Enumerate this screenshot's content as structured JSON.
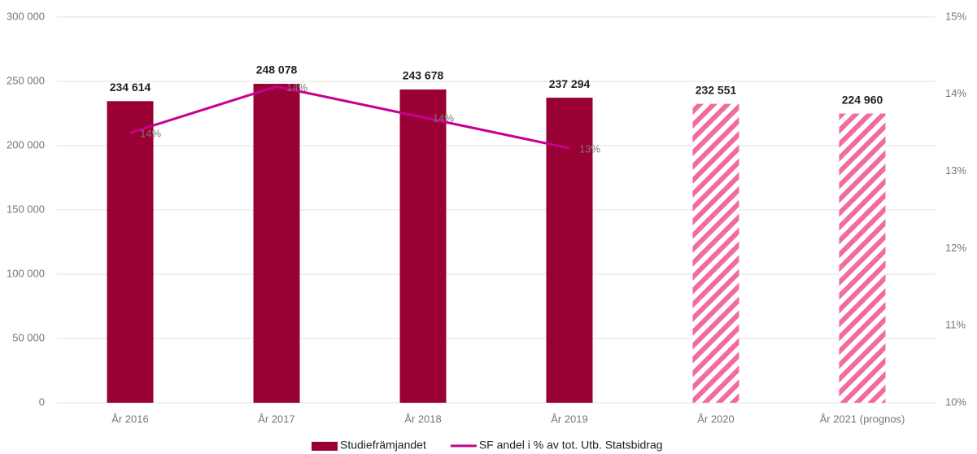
{
  "chart_data": {
    "type": "bar",
    "categories": [
      "År 2016",
      "År 2017",
      "År 2018",
      "År 2019",
      "År 2020",
      "År 2021 (prognos)"
    ],
    "series": [
      {
        "name": "Studiefrämjandet",
        "type": "bar",
        "color": "#990033",
        "hatch_color": "#f06ba0",
        "values": [
          234614,
          248078,
          243678,
          237294,
          232551,
          224960
        ],
        "value_labels": [
          "234 614",
          "248 078",
          "243 678",
          "237 294",
          "232 551",
          "224 960"
        ],
        "styles": [
          "solid",
          "solid",
          "solid",
          "solid",
          "hatched",
          "hatched"
        ]
      },
      {
        "name": "SF andel i % av tot. Utb. Statsbidrag",
        "type": "line",
        "axis": "y2",
        "color": "#c8008f",
        "values": [
          13.5,
          14.1,
          13.7,
          13.3,
          null,
          null
        ],
        "value_labels": [
          "14%",
          "14%",
          "14%",
          "13%",
          null,
          null
        ]
      }
    ],
    "ylim": [
      0,
      300000
    ],
    "yticks": [
      0,
      {
        "value": 50000,
        "label": "50 000"
      },
      {
        "value": 100000,
        "label": "100 000"
      },
      {
        "value": 150000,
        "label": "150 000"
      },
      {
        "value": 200000,
        "label": "200 000"
      },
      {
        "value": 250000,
        "label": "250 000"
      },
      {
        "value": 300000,
        "label": "300 000"
      }
    ],
    "y2lim": [
      10,
      15
    ],
    "y2ticks": [
      {
        "value": 10,
        "label": "10%"
      },
      {
        "value": 11,
        "label": "11%"
      },
      {
        "value": 12,
        "label": "12%"
      },
      {
        "value": 13,
        "label": "13%"
      },
      {
        "value": 14,
        "label": "14%"
      },
      {
        "value": 15,
        "label": "15%"
      }
    ],
    "grid": true,
    "legend": "bottom"
  }
}
